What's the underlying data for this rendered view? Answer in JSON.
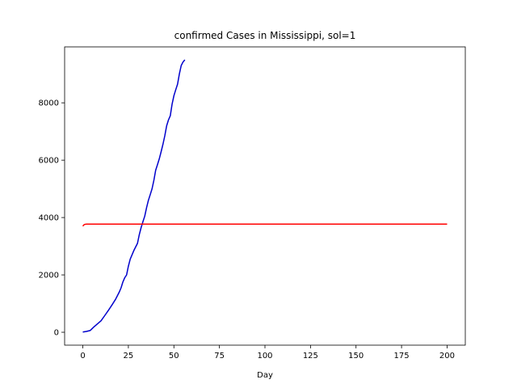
{
  "chart_data": {
    "type": "line",
    "title": "confirmed Cases in Mississippi, sol=1",
    "xlabel": "Day",
    "ylabel": "",
    "xlim": [
      -10,
      210
    ],
    "ylim": [
      -450,
      9950
    ],
    "xticks": [
      0,
      25,
      50,
      75,
      100,
      125,
      150,
      175,
      200
    ],
    "yticks": [
      0,
      2000,
      4000,
      6000,
      8000
    ],
    "grid": false,
    "series": [
      {
        "color": "#0000cc",
        "x": [
          0,
          2,
          4,
          6,
          8,
          10,
          12,
          14,
          16,
          18,
          20,
          21,
          22,
          23,
          24,
          25,
          26,
          28,
          30,
          31,
          32,
          33,
          34,
          35,
          36,
          37,
          38,
          39,
          40,
          41,
          42,
          43,
          44,
          45,
          46,
          47,
          48,
          49,
          50,
          51,
          52,
          53,
          54,
          55,
          56
        ],
        "y": [
          10,
          30,
          60,
          180,
          290,
          400,
          580,
          760,
          950,
          1150,
          1400,
          1550,
          1750,
          1900,
          2000,
          2300,
          2550,
          2850,
          3100,
          3400,
          3650,
          3850,
          4050,
          4350,
          4600,
          4800,
          5000,
          5300,
          5650,
          5850,
          6050,
          6300,
          6550,
          6850,
          7200,
          7400,
          7550,
          7950,
          8250,
          8450,
          8650,
          9000,
          9300,
          9420,
          9500
        ]
      },
      {
        "color": "#ff0000",
        "x": [
          0,
          0.5,
          1,
          2,
          200
        ],
        "y": [
          3700,
          3740,
          3760,
          3770,
          3770
        ]
      }
    ]
  }
}
